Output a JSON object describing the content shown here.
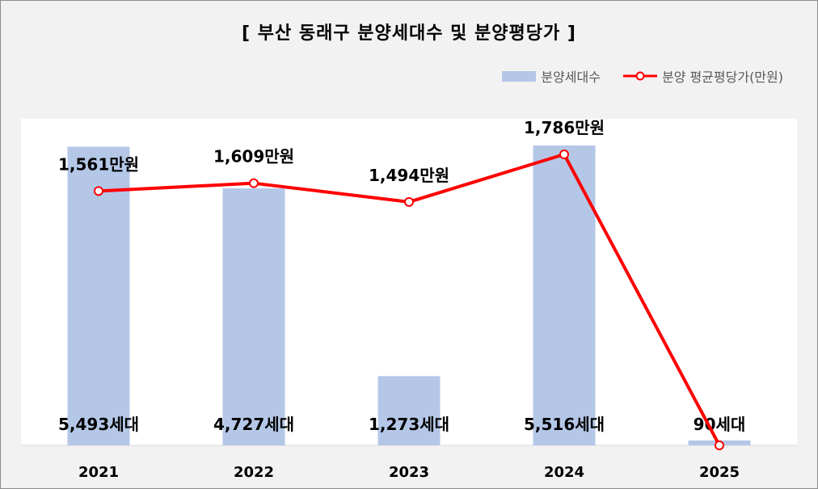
{
  "chart_data": {
    "type": "bar",
    "title": "[ 부산 동래구 분양세대수 및 분양평당가 ]",
    "categories": [
      "2021",
      "2022",
      "2023",
      "2024",
      "2025"
    ],
    "series": [
      {
        "name": "분양세대수",
        "type": "bar",
        "values": [
          5493,
          4727,
          1273,
          5516,
          90
        ],
        "labels": [
          "5,493세대",
          "4,727세대",
          "1,273세대",
          "5,516세대",
          "90세대"
        ],
        "color": "#b4c7e7"
      },
      {
        "name": "분양 평균평당가(만원)",
        "type": "line",
        "values": [
          1561,
          1609,
          1494,
          1786,
          0
        ],
        "labels": [
          "1,561만원",
          "1,609만원",
          "1,494만원",
          "1,786만원",
          ""
        ],
        "color": "#ff0000"
      }
    ],
    "ylim_bars": [
      0,
      5600
    ],
    "ylim_line": [
      0,
      1850
    ],
    "grid": false,
    "legend_position": "top-right"
  }
}
